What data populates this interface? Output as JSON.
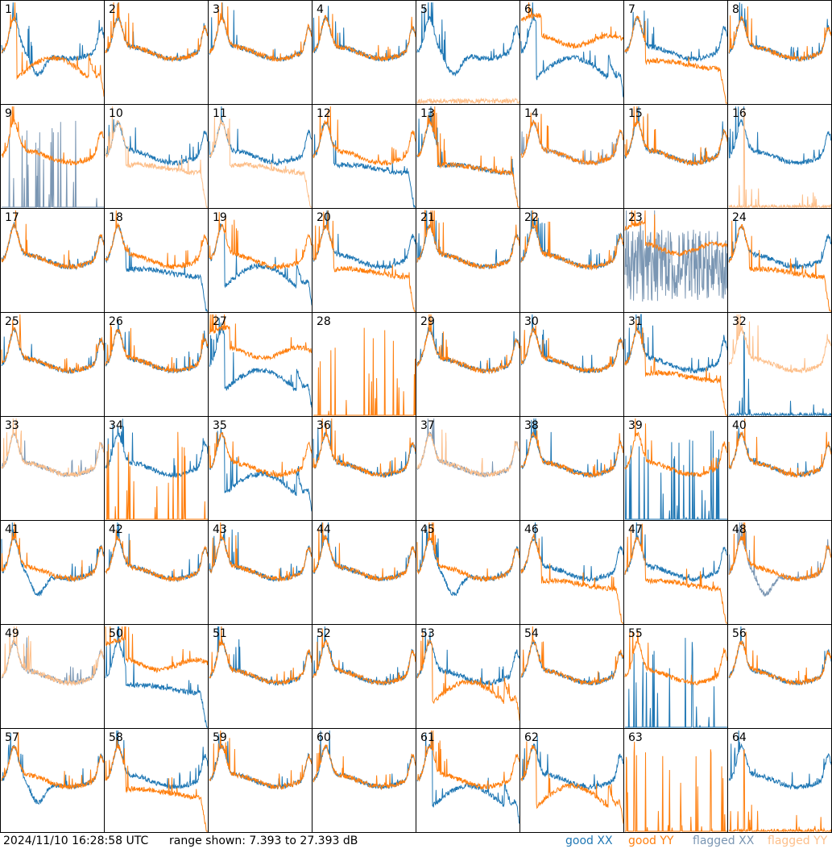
{
  "footer": {
    "timestamp": "2024/11/10 16:28:58 UTC",
    "range_text": "range shown: 7.393 to 27.393 dB"
  },
  "legend": [
    {
      "label": "good XX",
      "color": "#1f77b4"
    },
    {
      "label": "good YY",
      "color": "#ff7f0e"
    },
    {
      "label": "flagged XX",
      "color": "#7a96b3"
    },
    {
      "label": "flagged YY",
      "color": "#fdbf8a"
    }
  ],
  "colors": {
    "good_xx": "#1f77b4",
    "good_yy": "#ff7f0e",
    "flagged_xx": "#7a96b3",
    "flagged_yy": "#fdbf8a"
  },
  "chart_data": {
    "type": "line",
    "ylim": [
      7.393,
      27.393
    ],
    "units": "dB",
    "panels": [
      {
        "label": "1",
        "xx": {
          "shape": "dip",
          "status": "good"
        },
        "yy": {
          "shape": "deep",
          "status": "good"
        }
      },
      {
        "label": "2",
        "xx": {
          "shape": "normal",
          "status": "good"
        },
        "yy": {
          "shape": "normal",
          "status": "good"
        }
      },
      {
        "label": "3",
        "xx": {
          "shape": "normal",
          "status": "good"
        },
        "yy": {
          "shape": "normal",
          "status": "good"
        }
      },
      {
        "label": "4",
        "xx": {
          "shape": "normal",
          "status": "good"
        },
        "yy": {
          "shape": "normal",
          "status": "good"
        }
      },
      {
        "label": "5",
        "xx": {
          "shape": "dip",
          "status": "good"
        },
        "yy": {
          "shape": "flat",
          "status": "flagged"
        }
      },
      {
        "label": "6",
        "xx": {
          "shape": "deep",
          "status": "good"
        },
        "yy": {
          "shape": "high",
          "status": "good"
        }
      },
      {
        "label": "7",
        "xx": {
          "shape": "normal",
          "status": "good"
        },
        "yy": {
          "shape": "low",
          "status": "good"
        }
      },
      {
        "label": "8",
        "xx": {
          "shape": "normal",
          "status": "good"
        },
        "yy": {
          "shape": "normal",
          "status": "good"
        }
      },
      {
        "label": "9",
        "xx": {
          "shape": "spikes",
          "status": "flagged"
        },
        "yy": {
          "shape": "normal",
          "status": "good"
        }
      },
      {
        "label": "10",
        "xx": {
          "shape": "normal",
          "status": "good"
        },
        "yy": {
          "shape": "low",
          "status": "flagged"
        }
      },
      {
        "label": "11",
        "xx": {
          "shape": "normal",
          "status": "good"
        },
        "yy": {
          "shape": "low",
          "status": "flagged"
        }
      },
      {
        "label": "12",
        "xx": {
          "shape": "low",
          "status": "good"
        },
        "yy": {
          "shape": "normal",
          "status": "good"
        }
      },
      {
        "label": "13",
        "xx": {
          "shape": "low",
          "status": "good"
        },
        "yy": {
          "shape": "low",
          "status": "good"
        }
      },
      {
        "label": "14",
        "xx": {
          "shape": "normal",
          "status": "flagged"
        },
        "yy": {
          "shape": "normal",
          "status": "good"
        }
      },
      {
        "label": "15",
        "xx": {
          "shape": "normal",
          "status": "good"
        },
        "yy": {
          "shape": "normal",
          "status": "good"
        }
      },
      {
        "label": "16",
        "xx": {
          "shape": "normal",
          "status": "good"
        },
        "yy": {
          "shape": "spike1",
          "status": "flagged"
        }
      },
      {
        "label": "17",
        "xx": {
          "shape": "normal",
          "status": "good"
        },
        "yy": {
          "shape": "normal",
          "status": "good"
        }
      },
      {
        "label": "18",
        "xx": {
          "shape": "low",
          "status": "good"
        },
        "yy": {
          "shape": "normal",
          "status": "good"
        }
      },
      {
        "label": "19",
        "xx": {
          "shape": "deep",
          "status": "good"
        },
        "yy": {
          "shape": "normal",
          "status": "good"
        }
      },
      {
        "label": "20",
        "xx": {
          "shape": "normal",
          "status": "good"
        },
        "yy": {
          "shape": "low",
          "status": "good"
        }
      },
      {
        "label": "21",
        "xx": {
          "shape": "normal",
          "status": "good"
        },
        "yy": {
          "shape": "normal",
          "status": "good"
        }
      },
      {
        "label": "22",
        "xx": {
          "shape": "normal",
          "status": "good"
        },
        "yy": {
          "shape": "normal",
          "status": "good"
        }
      },
      {
        "label": "23",
        "xx": {
          "shape": "noise",
          "status": "flagged"
        },
        "yy": {
          "shape": "high",
          "status": "good"
        }
      },
      {
        "label": "24",
        "xx": {
          "shape": "normal",
          "status": "good"
        },
        "yy": {
          "shape": "low",
          "status": "good"
        }
      },
      {
        "label": "25",
        "xx": {
          "shape": "normal",
          "status": "good"
        },
        "yy": {
          "shape": "normal",
          "status": "good"
        }
      },
      {
        "label": "26",
        "xx": {
          "shape": "normal",
          "status": "good"
        },
        "yy": {
          "shape": "normal",
          "status": "good"
        }
      },
      {
        "label": "27",
        "xx": {
          "shape": "deep",
          "status": "good"
        },
        "yy": {
          "shape": "high",
          "status": "good"
        }
      },
      {
        "label": "28",
        "xx": {
          "shape": "none",
          "status": "good"
        },
        "yy": {
          "shape": "spikes",
          "status": "good"
        }
      },
      {
        "label": "29",
        "xx": {
          "shape": "normal",
          "status": "good"
        },
        "yy": {
          "shape": "normal",
          "status": "good"
        }
      },
      {
        "label": "30",
        "xx": {
          "shape": "normal",
          "status": "good"
        },
        "yy": {
          "shape": "normal",
          "status": "good"
        }
      },
      {
        "label": "31",
        "xx": {
          "shape": "normal",
          "status": "good"
        },
        "yy": {
          "shape": "low",
          "status": "good"
        }
      },
      {
        "label": "32",
        "xx": {
          "shape": "spike1",
          "status": "good"
        },
        "yy": {
          "shape": "normal",
          "status": "flagged"
        }
      },
      {
        "label": "33",
        "xx": {
          "shape": "normal",
          "status": "flagged"
        },
        "yy": {
          "shape": "normal",
          "status": "flagged"
        }
      },
      {
        "label": "34",
        "xx": {
          "shape": "normal",
          "status": "good"
        },
        "yy": {
          "shape": "spikes",
          "status": "good"
        }
      },
      {
        "label": "35",
        "xx": {
          "shape": "deep",
          "status": "good"
        },
        "yy": {
          "shape": "normal",
          "status": "good"
        }
      },
      {
        "label": "36",
        "xx": {
          "shape": "normal",
          "status": "good"
        },
        "yy": {
          "shape": "normal",
          "status": "good"
        }
      },
      {
        "label": "37",
        "xx": {
          "shape": "normal",
          "status": "flagged"
        },
        "yy": {
          "shape": "normal",
          "status": "flagged"
        }
      },
      {
        "label": "38",
        "xx": {
          "shape": "normal",
          "status": "good"
        },
        "yy": {
          "shape": "normal",
          "status": "good"
        }
      },
      {
        "label": "39",
        "xx": {
          "shape": "spikes",
          "status": "good"
        },
        "yy": {
          "shape": "normal",
          "status": "good"
        }
      },
      {
        "label": "40",
        "xx": {
          "shape": "normal",
          "status": "good"
        },
        "yy": {
          "shape": "normal",
          "status": "good"
        }
      },
      {
        "label": "41",
        "xx": {
          "shape": "dip",
          "status": "good"
        },
        "yy": {
          "shape": "normal",
          "status": "good"
        }
      },
      {
        "label": "42",
        "xx": {
          "shape": "normal",
          "status": "good"
        },
        "yy": {
          "shape": "normal",
          "status": "good"
        }
      },
      {
        "label": "43",
        "xx": {
          "shape": "normal",
          "status": "good"
        },
        "yy": {
          "shape": "normal",
          "status": "good"
        }
      },
      {
        "label": "44",
        "xx": {
          "shape": "normal",
          "status": "good"
        },
        "yy": {
          "shape": "normal",
          "status": "good"
        }
      },
      {
        "label": "45",
        "xx": {
          "shape": "dip",
          "status": "good"
        },
        "yy": {
          "shape": "normal",
          "status": "good"
        }
      },
      {
        "label": "46",
        "xx": {
          "shape": "normal",
          "status": "good"
        },
        "yy": {
          "shape": "low",
          "status": "good"
        }
      },
      {
        "label": "47",
        "xx": {
          "shape": "normal",
          "status": "good"
        },
        "yy": {
          "shape": "low",
          "status": "good"
        }
      },
      {
        "label": "48",
        "xx": {
          "shape": "dip",
          "status": "flagged"
        },
        "yy": {
          "shape": "normal",
          "status": "good"
        }
      },
      {
        "label": "49",
        "xx": {
          "shape": "normal",
          "status": "flagged"
        },
        "yy": {
          "shape": "normal",
          "status": "flagged"
        }
      },
      {
        "label": "50",
        "xx": {
          "shape": "low",
          "status": "good"
        },
        "yy": {
          "shape": "high",
          "status": "good"
        }
      },
      {
        "label": "51",
        "xx": {
          "shape": "normal",
          "status": "good"
        },
        "yy": {
          "shape": "normal",
          "status": "good"
        }
      },
      {
        "label": "52",
        "xx": {
          "shape": "normal",
          "status": "good"
        },
        "yy": {
          "shape": "normal",
          "status": "good"
        }
      },
      {
        "label": "53",
        "xx": {
          "shape": "normal",
          "status": "good"
        },
        "yy": {
          "shape": "deep",
          "status": "good"
        }
      },
      {
        "label": "54",
        "xx": {
          "shape": "normal",
          "status": "good"
        },
        "yy": {
          "shape": "normal",
          "status": "good"
        }
      },
      {
        "label": "55",
        "xx": {
          "shape": "spikes",
          "status": "good"
        },
        "yy": {
          "shape": "normal",
          "status": "good"
        }
      },
      {
        "label": "56",
        "xx": {
          "shape": "normal",
          "status": "good"
        },
        "yy": {
          "shape": "normal",
          "status": "good"
        }
      },
      {
        "label": "57",
        "xx": {
          "shape": "dip",
          "status": "good"
        },
        "yy": {
          "shape": "normal",
          "status": "good"
        }
      },
      {
        "label": "58",
        "xx": {
          "shape": "normal",
          "status": "good"
        },
        "yy": {
          "shape": "low",
          "status": "good"
        }
      },
      {
        "label": "59",
        "xx": {
          "shape": "normal",
          "status": "good"
        },
        "yy": {
          "shape": "normal",
          "status": "good"
        }
      },
      {
        "label": "60",
        "xx": {
          "shape": "normal",
          "status": "good"
        },
        "yy": {
          "shape": "normal",
          "status": "good"
        }
      },
      {
        "label": "61",
        "xx": {
          "shape": "deep",
          "status": "good"
        },
        "yy": {
          "shape": "normal",
          "status": "good"
        }
      },
      {
        "label": "62",
        "xx": {
          "shape": "normal",
          "status": "good"
        },
        "yy": {
          "shape": "deep",
          "status": "good"
        }
      },
      {
        "label": "63",
        "xx": {
          "shape": "none",
          "status": "good"
        },
        "yy": {
          "shape": "spikes",
          "status": "good"
        }
      },
      {
        "label": "64",
        "xx": {
          "shape": "normal",
          "status": "good"
        },
        "yy": {
          "shape": "spike1",
          "status": "good"
        }
      }
    ]
  }
}
